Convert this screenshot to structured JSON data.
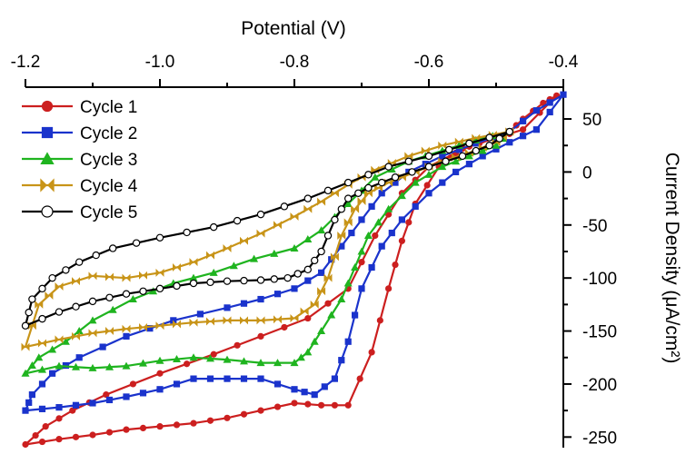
{
  "chart_data": {
    "type": "line",
    "xlabel": "Potential (V)",
    "ylabel": "Current Density (μA/cm²)",
    "xlim": [
      -1.2,
      -0.4
    ],
    "ylim": [
      -260,
      80
    ],
    "x_ticks": [
      -1.2,
      -1.0,
      -0.8,
      -0.6,
      -0.4
    ],
    "x_tick_labels": [
      "-1.2",
      "-1.0",
      "-0.8",
      "-0.6",
      "-0.4"
    ],
    "y_ticks": [
      50,
      0,
      -50,
      -100,
      -150,
      -200,
      -250
    ],
    "y_tick_labels": [
      "50",
      "0",
      "-50",
      "-100",
      "-150",
      "-200",
      "-250"
    ],
    "x_axis_position": "top",
    "y_axis_position": "right",
    "grid": false,
    "legend_position": "top-left",
    "series": [
      {
        "name": "Cycle 1",
        "color": "#cc1f1f",
        "marker": "circle",
        "points": [
          [
            -0.48,
            38
          ],
          [
            -0.46,
            50
          ],
          [
            -0.43,
            65
          ],
          [
            -0.41,
            72
          ],
          [
            -0.46,
            40
          ],
          [
            -0.5,
            32
          ],
          [
            -0.55,
            22
          ],
          [
            -0.585,
            5
          ],
          [
            -0.62,
            -30
          ],
          [
            -0.64,
            -65
          ],
          [
            -0.66,
            -110
          ],
          [
            -0.685,
            -170
          ],
          [
            -0.72,
            -220
          ],
          [
            -0.76,
            -220
          ],
          [
            -0.8,
            -218
          ],
          [
            -0.85,
            -225
          ],
          [
            -0.9,
            -232
          ],
          [
            -0.95,
            -237
          ],
          [
            -1.0,
            -240
          ],
          [
            -1.05,
            -243
          ],
          [
            -1.1,
            -248
          ],
          [
            -1.15,
            -252
          ],
          [
            -1.2,
            -257
          ],
          [
            -1.17,
            -240
          ],
          [
            -1.13,
            -225
          ],
          [
            -1.08,
            -210
          ],
          [
            -1.0,
            -190
          ],
          [
            -0.92,
            -172
          ],
          [
            -0.85,
            -155
          ],
          [
            -0.78,
            -138
          ],
          [
            -0.72,
            -110
          ],
          [
            -0.68,
            -60
          ],
          [
            -0.64,
            -20
          ],
          [
            -0.6,
            5
          ],
          [
            -0.56,
            18
          ],
          [
            -0.52,
            30
          ],
          [
            -0.48,
            38
          ]
        ]
      },
      {
        "name": "Cycle 2",
        "color": "#1a33cc",
        "marker": "square",
        "points": [
          [
            -0.48,
            38
          ],
          [
            -0.44,
            58
          ],
          [
            -0.4,
            73
          ],
          [
            -0.44,
            40
          ],
          [
            -0.48,
            28
          ],
          [
            -0.52,
            15
          ],
          [
            -0.56,
            0
          ],
          [
            -0.6,
            -20
          ],
          [
            -0.64,
            -45
          ],
          [
            -0.67,
            -70
          ],
          [
            -0.7,
            -110
          ],
          [
            -0.72,
            -160
          ],
          [
            -0.74,
            -195
          ],
          [
            -0.77,
            -210
          ],
          [
            -0.8,
            -205
          ],
          [
            -0.85,
            -195
          ],
          [
            -0.9,
            -195
          ],
          [
            -0.95,
            -195
          ],
          [
            -1.0,
            -205
          ],
          [
            -1.05,
            -212
          ],
          [
            -1.1,
            -218
          ],
          [
            -1.15,
            -222
          ],
          [
            -1.2,
            -225
          ],
          [
            -1.19,
            -210
          ],
          [
            -1.16,
            -190
          ],
          [
            -1.12,
            -175
          ],
          [
            -1.05,
            -155
          ],
          [
            -0.98,
            -140
          ],
          [
            -0.9,
            -128
          ],
          [
            -0.85,
            -120
          ],
          [
            -0.8,
            -110
          ],
          [
            -0.76,
            -95
          ],
          [
            -0.73,
            -70
          ],
          [
            -0.7,
            -45
          ],
          [
            -0.67,
            -20
          ],
          [
            -0.63,
            0
          ],
          [
            -0.58,
            15
          ],
          [
            -0.53,
            27
          ],
          [
            -0.48,
            38
          ]
        ]
      },
      {
        "name": "Cycle 3",
        "color": "#1fb41f",
        "marker": "triangle",
        "points": [
          [
            -0.48,
            38
          ],
          [
            -0.5,
            25
          ],
          [
            -0.54,
            15
          ],
          [
            -0.58,
            5
          ],
          [
            -0.62,
            -10
          ],
          [
            -0.66,
            -35
          ],
          [
            -0.69,
            -60
          ],
          [
            -0.71,
            -90
          ],
          [
            -0.73,
            -120
          ],
          [
            -0.76,
            -150
          ],
          [
            -0.78,
            -170
          ],
          [
            -0.8,
            -180
          ],
          [
            -0.85,
            -180
          ],
          [
            -0.9,
            -177
          ],
          [
            -0.95,
            -175
          ],
          [
            -1.0,
            -178
          ],
          [
            -1.05,
            -183
          ],
          [
            -1.1,
            -185
          ],
          [
            -1.15,
            -183
          ],
          [
            -1.2,
            -190
          ],
          [
            -1.18,
            -175
          ],
          [
            -1.14,
            -160
          ],
          [
            -1.1,
            -140
          ],
          [
            -1.04,
            -120
          ],
          [
            -0.98,
            -105
          ],
          [
            -0.92,
            -95
          ],
          [
            -0.86,
            -82
          ],
          [
            -0.8,
            -72
          ],
          [
            -0.76,
            -55
          ],
          [
            -0.72,
            -30
          ],
          [
            -0.68,
            -5
          ],
          [
            -0.63,
            10
          ],
          [
            -0.58,
            20
          ],
          [
            -0.53,
            30
          ],
          [
            -0.48,
            38
          ]
        ]
      },
      {
        "name": "Cycle 4",
        "color": "#c89418",
        "marker": "bowtie",
        "points": [
          [
            -0.48,
            38
          ],
          [
            -0.5,
            28
          ],
          [
            -0.54,
            18
          ],
          [
            -0.58,
            10
          ],
          [
            -0.62,
            0
          ],
          [
            -0.66,
            -10
          ],
          [
            -0.69,
            -20
          ],
          [
            -0.71,
            -35
          ],
          [
            -0.73,
            -60
          ],
          [
            -0.75,
            -100
          ],
          [
            -0.77,
            -125
          ],
          [
            -0.8,
            -138
          ],
          [
            -0.85,
            -140
          ],
          [
            -0.9,
            -140
          ],
          [
            -0.95,
            -142
          ],
          [
            -1.0,
            -145
          ],
          [
            -1.05,
            -148
          ],
          [
            -1.1,
            -152
          ],
          [
            -1.15,
            -158
          ],
          [
            -1.2,
            -165
          ],
          [
            -1.18,
            -125
          ],
          [
            -1.15,
            -108
          ],
          [
            -1.1,
            -98
          ],
          [
            -1.05,
            -100
          ],
          [
            -1.0,
            -95
          ],
          [
            -0.95,
            -85
          ],
          [
            -0.9,
            -72
          ],
          [
            -0.85,
            -58
          ],
          [
            -0.8,
            -42
          ],
          [
            -0.76,
            -28
          ],
          [
            -0.72,
            -12
          ],
          [
            -0.68,
            2
          ],
          [
            -0.63,
            15
          ],
          [
            -0.58,
            25
          ],
          [
            -0.53,
            32
          ],
          [
            -0.48,
            38
          ]
        ]
      },
      {
        "name": "Cycle 5",
        "color": "#000000",
        "marker": "open-circle",
        "points": [
          [
            -0.48,
            38
          ],
          [
            -0.51,
            25
          ],
          [
            -0.55,
            15
          ],
          [
            -0.6,
            5
          ],
          [
            -0.65,
            -5
          ],
          [
            -0.69,
            -15
          ],
          [
            -0.72,
            -25
          ],
          [
            -0.74,
            -45
          ],
          [
            -0.76,
            -75
          ],
          [
            -0.78,
            -92
          ],
          [
            -0.81,
            -100
          ],
          [
            -0.85,
            -102
          ],
          [
            -0.9,
            -103
          ],
          [
            -0.95,
            -105
          ],
          [
            -1.0,
            -110
          ],
          [
            -1.05,
            -115
          ],
          [
            -1.1,
            -122
          ],
          [
            -1.15,
            -132
          ],
          [
            -1.2,
            -145
          ],
          [
            -1.19,
            -120
          ],
          [
            -1.16,
            -100
          ],
          [
            -1.12,
            -85
          ],
          [
            -1.07,
            -72
          ],
          [
            -1.0,
            -62
          ],
          [
            -0.92,
            -52
          ],
          [
            -0.85,
            -40
          ],
          [
            -0.78,
            -25
          ],
          [
            -0.72,
            -10
          ],
          [
            -0.66,
            5
          ],
          [
            -0.6,
            15
          ],
          [
            -0.54,
            27
          ],
          [
            -0.48,
            38
          ]
        ]
      }
    ]
  }
}
